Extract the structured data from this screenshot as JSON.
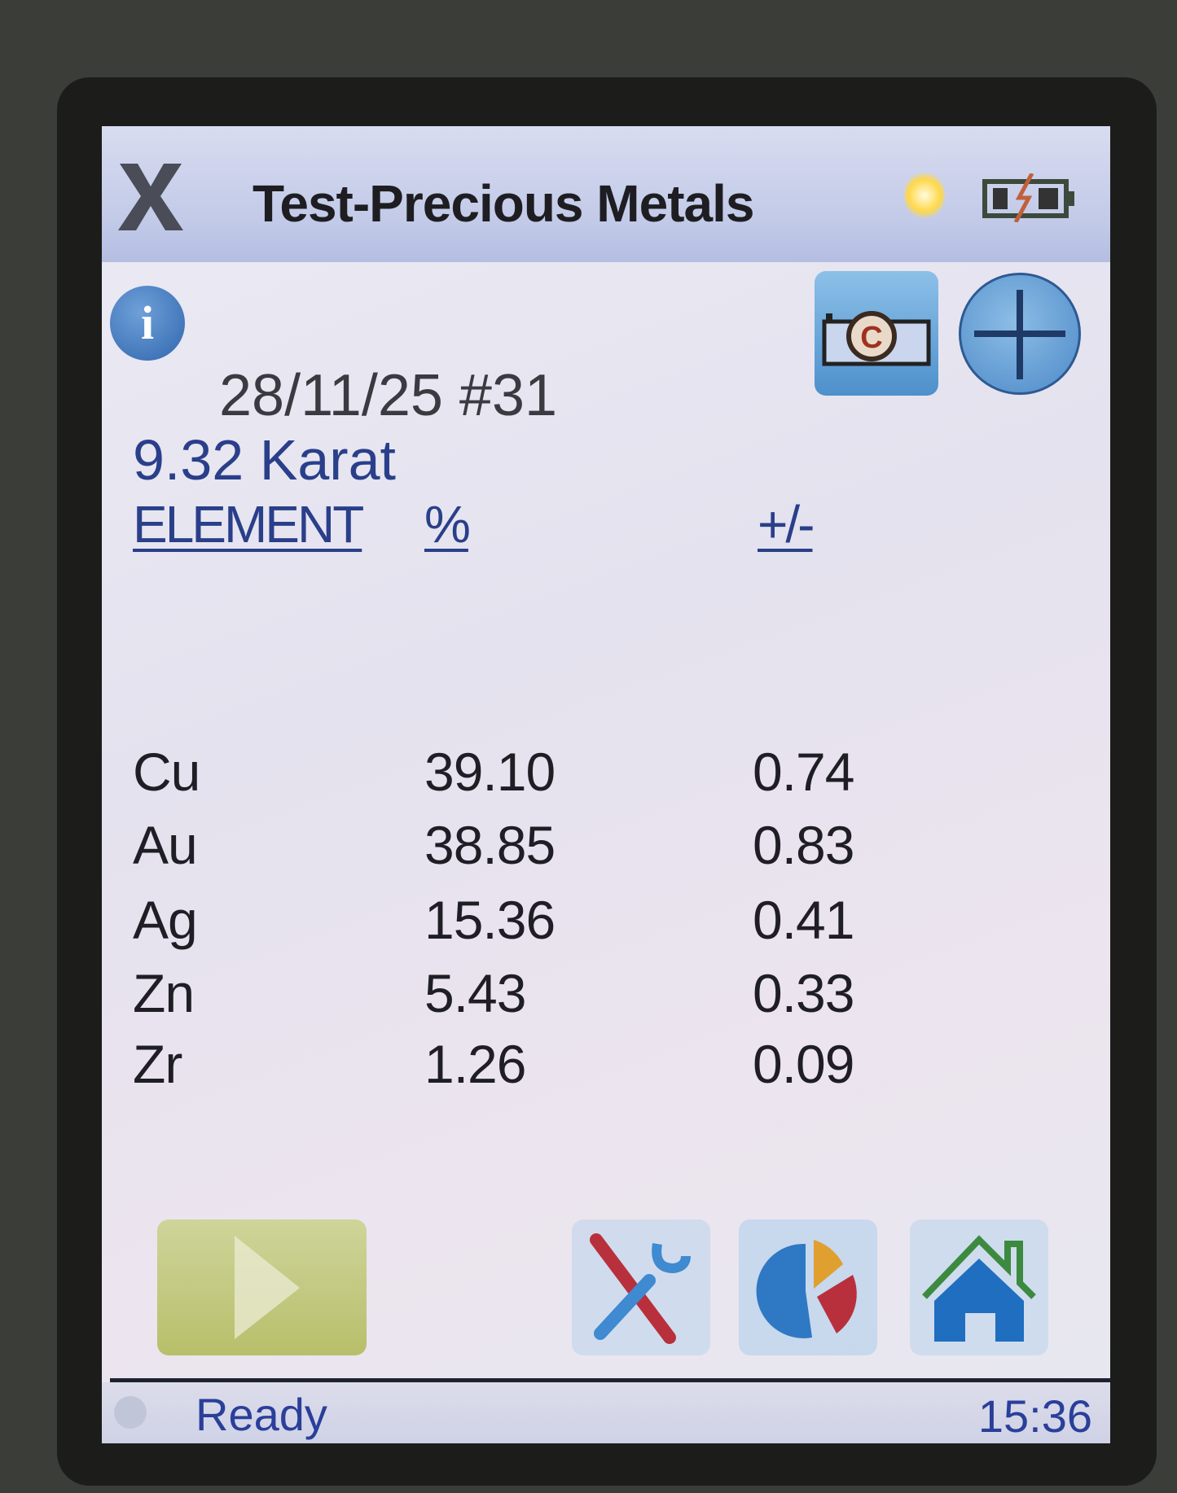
{
  "window": {
    "title": "Test-Precious Metals",
    "close_icon": "close-x-icon",
    "status_icons": [
      "light-bulb-icon",
      "battery-charging-icon"
    ]
  },
  "toolbar": {
    "info_icon": "info-icon",
    "camera_icon": "camera-icon",
    "plus_icon": "plus-icon"
  },
  "result": {
    "date_id": "28/11/25 #31",
    "karat": "9.32 Karat",
    "columns": [
      "ELEMENT",
      "%",
      "+/-"
    ],
    "rows": [
      {
        "element": "Cu",
        "percent": "39.10",
        "error": "0.74"
      },
      {
        "element": "Au",
        "percent": "38.85",
        "error": "0.83"
      },
      {
        "element": "Ag",
        "percent": "15.36",
        "error": "0.41"
      },
      {
        "element": "Zn",
        "percent": "5.43",
        "error": "0.33"
      },
      {
        "element": "Zr",
        "percent": "1.26",
        "error": "0.09"
      }
    ]
  },
  "bottom_bar": {
    "buttons": [
      "play-icon",
      "tools-icon",
      "pie-chart-icon",
      "home-icon"
    ]
  },
  "status": {
    "text": "Ready",
    "time": "15:36"
  },
  "colors": {
    "accent_blue": "#2a3f8a",
    "title_bar": "#c2cae8",
    "play_button": "#c4ca80"
  }
}
